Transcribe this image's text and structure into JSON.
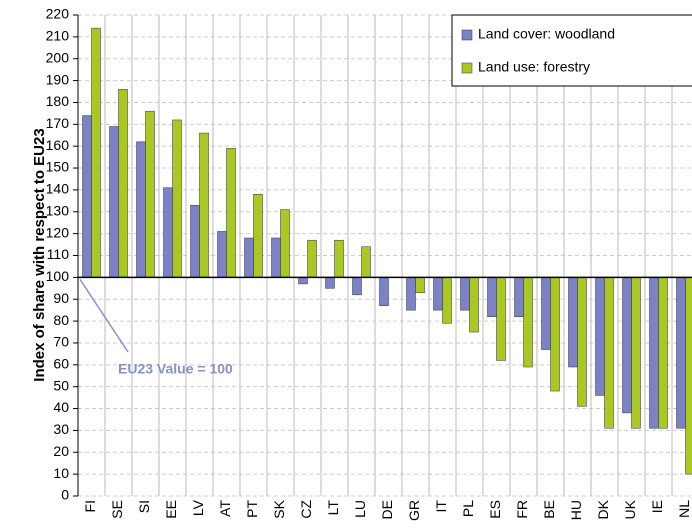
{
  "chart_data": {
    "type": "bar",
    "y_label": "Index of share with respect to EU23",
    "categories": [
      "FI",
      "SE",
      "SI",
      "EE",
      "LV",
      "AT",
      "PT",
      "SK",
      "CZ",
      "LT",
      "LU",
      "DE",
      "GR",
      "IT",
      "PL",
      "ES",
      "FR",
      "BE",
      "HU",
      "DK",
      "UK",
      "IE",
      "NL"
    ],
    "series": [
      {
        "name": "Land cover: woodland",
        "color": "#7b82c6",
        "values": [
          174,
          169,
          162,
          141,
          133,
          121,
          118,
          118,
          97,
          95,
          92,
          87,
          85,
          85,
          85,
          82,
          82,
          67,
          59,
          46,
          38,
          31,
          31
        ]
      },
      {
        "name": "Land use: forestry",
        "color": "#a9c824",
        "values": [
          214,
          186,
          176,
          172,
          166,
          159,
          138,
          131,
          117,
          117,
          114,
          100,
          93,
          79,
          75,
          62,
          59,
          48,
          41,
          31,
          31,
          31,
          10
        ]
      }
    ],
    "bar_base": 100,
    "ylim": [
      0,
      220
    ],
    "yticks": [
      0,
      10,
      20,
      30,
      40,
      50,
      60,
      70,
      80,
      90,
      100,
      110,
      120,
      130,
      140,
      150,
      160,
      170,
      180,
      190,
      200,
      210,
      220
    ],
    "grid": true,
    "legend": "top-right",
    "annotation": "EU23 Value = 100"
  }
}
